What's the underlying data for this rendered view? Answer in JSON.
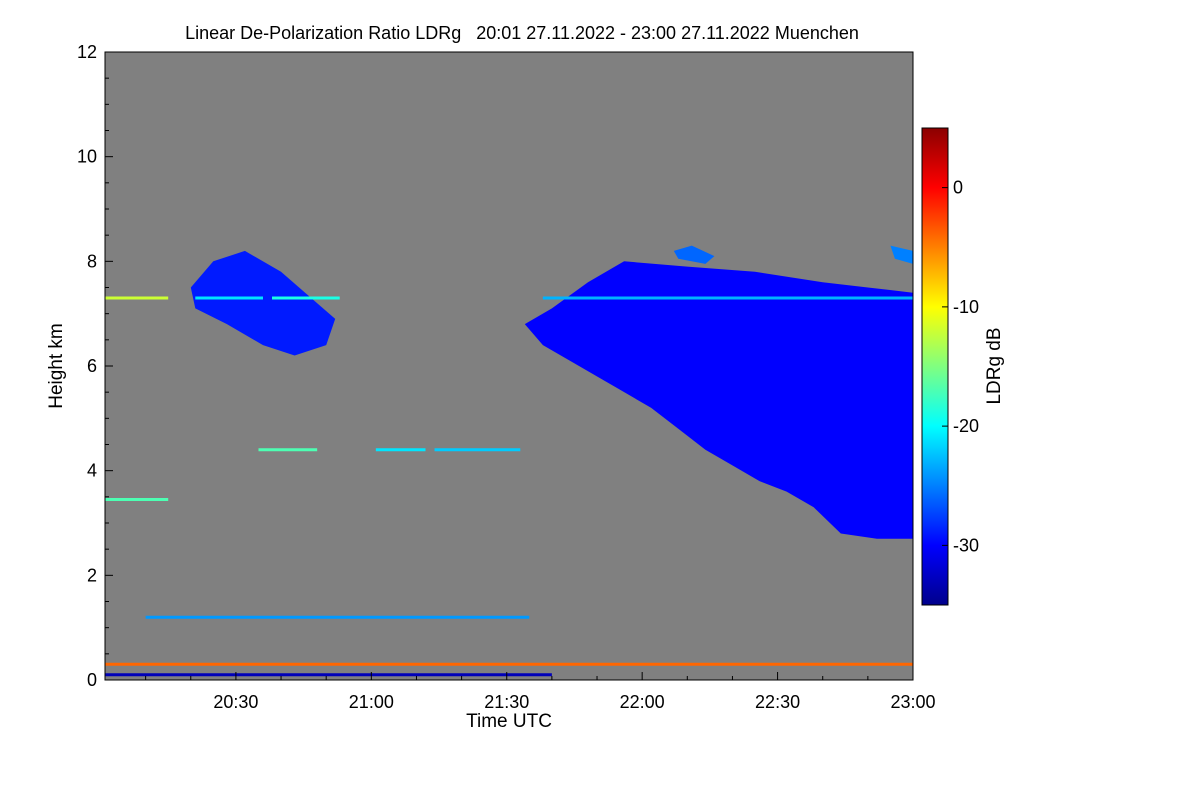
{
  "chart_data": {
    "type": "heatmap",
    "title": "Linear De-Polarization Ratio LDRg   20:01 27.11.2022 - 23:00 27.11.2022 Muenchen",
    "xlabel": "Time UTC",
    "ylabel": "Height km",
    "colorbar_label": "LDRg dB",
    "x_range_minutes_utc": [
      1201,
      1380
    ],
    "y_range_km": [
      0,
      12
    ],
    "colorbar_range_db": [
      -35,
      5
    ],
    "x_ticks": [
      {
        "minute": 1230,
        "label": "20:30"
      },
      {
        "minute": 1260,
        "label": "21:00"
      },
      {
        "minute": 1290,
        "label": "21:30"
      },
      {
        "minute": 1320,
        "label": "22:00"
      },
      {
        "minute": 1350,
        "label": "22:30"
      },
      {
        "minute": 1380,
        "label": "23:00"
      }
    ],
    "y_ticks": [
      {
        "value": 0,
        "label": "0"
      },
      {
        "value": 2,
        "label": "2"
      },
      {
        "value": 4,
        "label": "4"
      },
      {
        "value": 6,
        "label": "6"
      },
      {
        "value": 8,
        "label": "8"
      },
      {
        "value": 10,
        "label": "10"
      },
      {
        "value": 12,
        "label": "12"
      }
    ],
    "colorbar_ticks": [
      {
        "value": 0,
        "label": "0"
      },
      {
        "value": -10,
        "label": "-10"
      },
      {
        "value": -20,
        "label": "-20"
      },
      {
        "value": -30,
        "label": "-30"
      }
    ],
    "colormap": [
      "#00008b",
      "#0000ff",
      "#0080ff",
      "#00ffff",
      "#80ff80",
      "#ffff00",
      "#ff8000",
      "#ff0000",
      "#8b0000"
    ],
    "no_data_color": "#808080",
    "features": [
      {
        "name": "cirrus-layer-1",
        "ldr_db": -29,
        "polygon": [
          [
            1220,
            7.5
          ],
          [
            1225,
            8.0
          ],
          [
            1232,
            8.2
          ],
          [
            1240,
            7.8
          ],
          [
            1248,
            7.2
          ],
          [
            1252,
            6.9
          ],
          [
            1250,
            6.4
          ],
          [
            1243,
            6.2
          ],
          [
            1236,
            6.4
          ],
          [
            1228,
            6.8
          ],
          [
            1221,
            7.1
          ]
        ]
      },
      {
        "name": "cirrus-layer-2",
        "ldr_db": -30,
        "polygon": [
          [
            1294,
            6.8
          ],
          [
            1300,
            7.1
          ],
          [
            1308,
            7.6
          ],
          [
            1316,
            8.0
          ],
          [
            1330,
            7.9
          ],
          [
            1345,
            7.8
          ],
          [
            1360,
            7.6
          ],
          [
            1370,
            7.5
          ],
          [
            1380,
            7.4
          ],
          [
            1380,
            2.7
          ],
          [
            1372,
            2.7
          ],
          [
            1364,
            2.8
          ],
          [
            1358,
            3.3
          ],
          [
            1352,
            3.6
          ],
          [
            1346,
            3.8
          ],
          [
            1340,
            4.1
          ],
          [
            1334,
            4.4
          ],
          [
            1328,
            4.8
          ],
          [
            1322,
            5.2
          ],
          [
            1314,
            5.6
          ],
          [
            1306,
            6.0
          ],
          [
            1298,
            6.4
          ]
        ]
      },
      {
        "name": "small-cloud-patch",
        "ldr_db": -26,
        "polygon": [
          [
            1327,
            8.2
          ],
          [
            1331,
            8.3
          ],
          [
            1336,
            8.1
          ],
          [
            1334,
            7.95
          ],
          [
            1328,
            8.05
          ]
        ]
      },
      {
        "name": "upper-right-patch",
        "ldr_db": -25,
        "polygon": [
          [
            1375,
            8.3
          ],
          [
            1380,
            8.2
          ],
          [
            1380,
            7.95
          ],
          [
            1376,
            8.05
          ]
        ]
      }
    ],
    "layers": [
      {
        "name": "cloud-line-7.3km",
        "height_km": 7.3,
        "segments": [
          {
            "start": 1201,
            "end": 1215,
            "ldr_db": -12
          },
          {
            "start": 1221,
            "end": 1236,
            "ldr_db": -21
          },
          {
            "start": 1238,
            "end": 1253,
            "ldr_db": -19
          },
          {
            "start": 1298,
            "end": 1380,
            "ldr_db": -23
          }
        ]
      },
      {
        "name": "layer-4.4km",
        "height_km": 4.4,
        "segments": [
          {
            "start": 1235,
            "end": 1248,
            "ldr_db": -17
          },
          {
            "start": 1261,
            "end": 1272,
            "ldr_db": -21
          },
          {
            "start": 1274,
            "end": 1293,
            "ldr_db": -22
          }
        ]
      },
      {
        "name": "layer-3.45km",
        "height_km": 3.45,
        "segments": [
          {
            "start": 1201,
            "end": 1215,
            "ldr_db": -17
          }
        ]
      },
      {
        "name": "layer-1.2km",
        "height_km": 1.2,
        "segments": [
          {
            "start": 1210,
            "end": 1295,
            "ldr_db": -24
          }
        ]
      },
      {
        "name": "boundary-layer-0.3km",
        "height_km": 0.3,
        "segments": [
          {
            "start": 1201,
            "end": 1380,
            "ldr_db": -4
          }
        ]
      },
      {
        "name": "surface-0.1km",
        "height_km": 0.1,
        "segments": [
          {
            "start": 1201,
            "end": 1300,
            "ldr_db": -33
          }
        ]
      }
    ]
  }
}
